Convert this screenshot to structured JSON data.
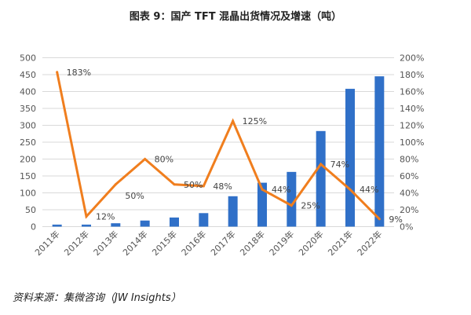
{
  "title": "图表 9：国产 TFT 混晶出货情况及增速（吨）",
  "source": "资料来源：集微咨询（JW Insights）",
  "chart_data": {
    "type": "bar",
    "categories": [
      "2011年",
      "2012年",
      "2013年",
      "2014年",
      "2015年",
      "2016年",
      "2017年",
      "2018年",
      "2019年",
      "2020年",
      "2021年",
      "2022年"
    ],
    "series": [
      {
        "type": "bar",
        "axis": "left",
        "color": "#3070C8",
        "values": [
          6,
          6,
          10,
          18,
          27,
          40,
          90,
          130,
          162,
          283,
          408,
          445
        ]
      },
      {
        "type": "line",
        "axis": "right",
        "color": "#F07E1E",
        "values": [
          183,
          12,
          50,
          80,
          50,
          48,
          125,
          44,
          25,
          74,
          44,
          9
        ],
        "labels": [
          "183%",
          "12%",
          "50%",
          "80%",
          "50%",
          "48%",
          "125%",
          "44%",
          "25%",
          "74%",
          "44%",
          "9%"
        ]
      }
    ],
    "ylim_left": [
      0,
      500
    ],
    "yticks_left": [
      "0",
      "50",
      "100",
      "150",
      "200",
      "250",
      "300",
      "350",
      "400",
      "450",
      "500"
    ],
    "ylim_right": [
      0,
      200
    ],
    "yticks_right": [
      "0%",
      "20%",
      "40%",
      "60%",
      "80%",
      "100%",
      "120%",
      "140%",
      "160%",
      "180%",
      "200%"
    ],
    "grid": true,
    "legend": "none"
  }
}
